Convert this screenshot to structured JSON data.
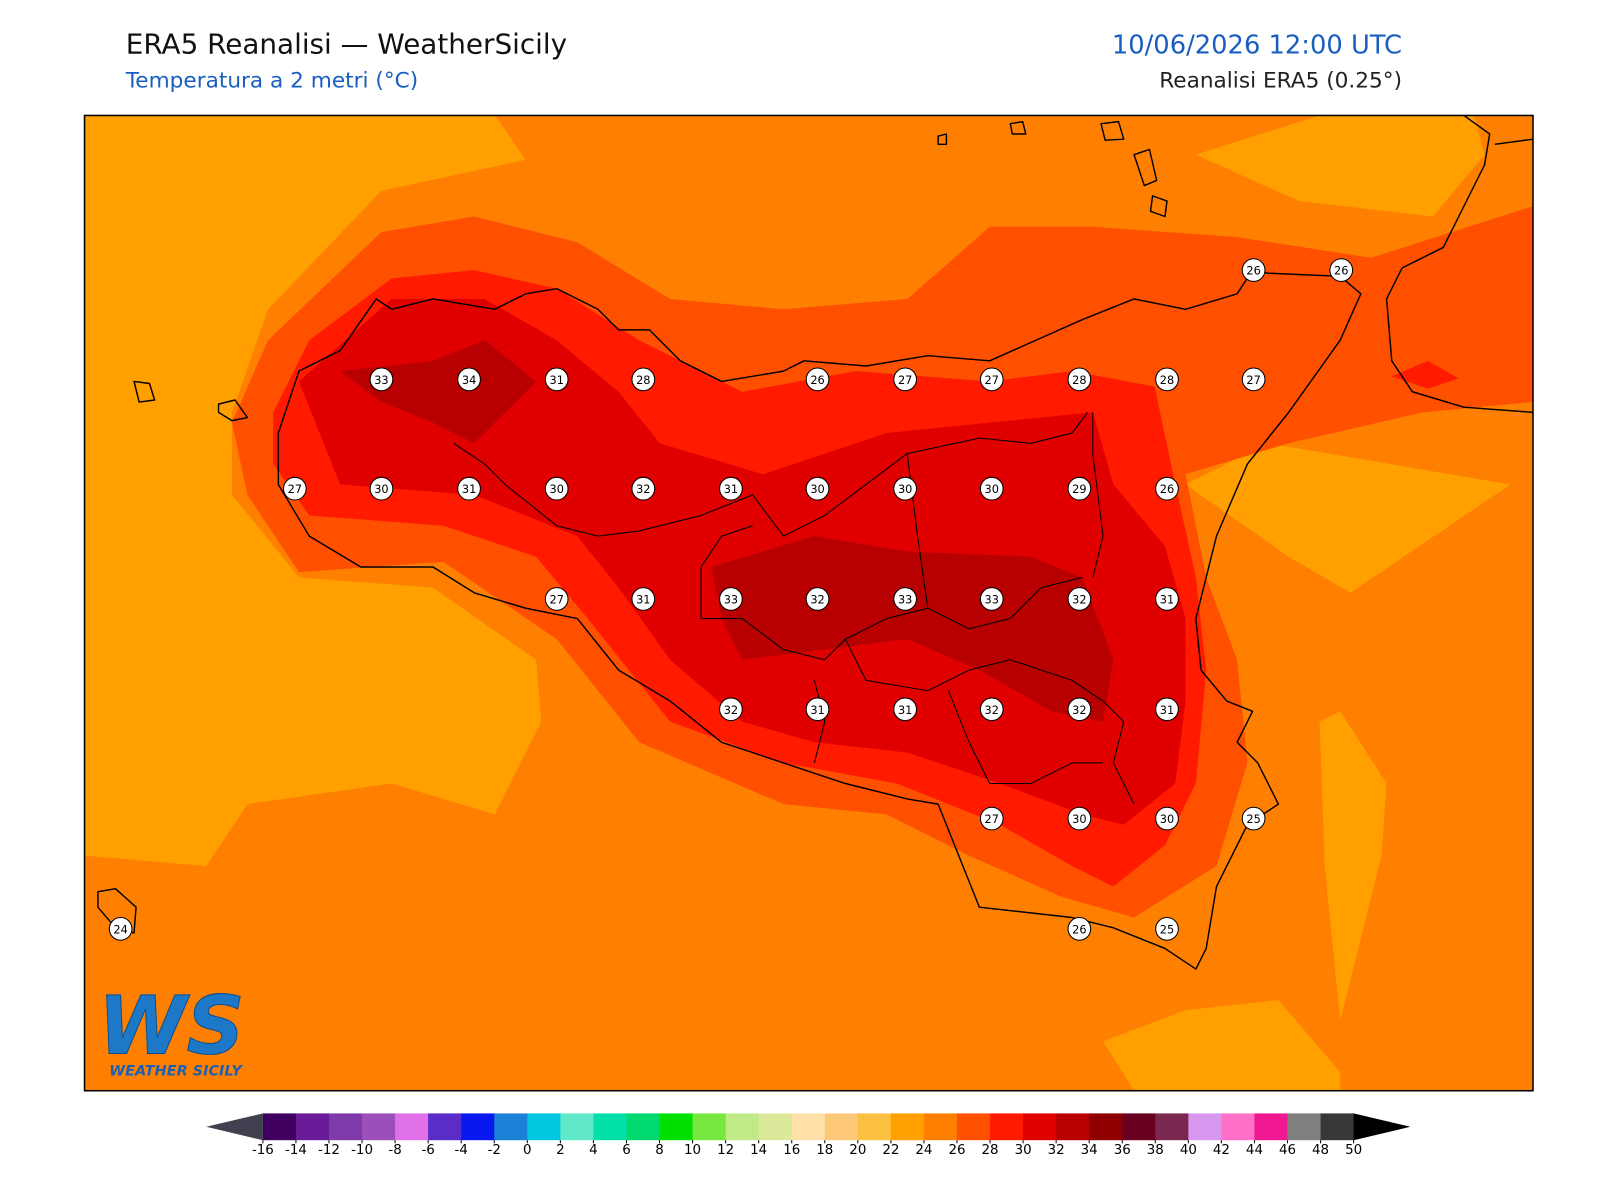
{
  "header": {
    "title": "ERA5 Reanalisi — WeatherSicily",
    "subtitle": "Temperatura a 2 metri (°C)",
    "datetime": "10/06/2026 12:00 UTC",
    "source": "Reanalisi ERA5 (0.25°)"
  },
  "stations": [
    33,
    34,
    31,
    28,
    26,
    27,
    27,
    28,
    28,
    27,
    26,
    26,
    27,
    30,
    31,
    30,
    32,
    31,
    30,
    30,
    30,
    29,
    26,
    27,
    31,
    33,
    32,
    33,
    33,
    32,
    31,
    32,
    31,
    31,
    32,
    32,
    31,
    27,
    30,
    30,
    25,
    24,
    26,
    25
  ],
  "colorbar": {
    "ticks": [
      -16,
      -14,
      -12,
      -10,
      -8,
      -6,
      -4,
      -2,
      0,
      2,
      4,
      6,
      8,
      10,
      12,
      14,
      16,
      18,
      20,
      22,
      24,
      26,
      28,
      30,
      32,
      34,
      36,
      38,
      40,
      42,
      44,
      46,
      48,
      50
    ],
    "colors": [
      "#400060",
      "#6a1b9a",
      "#7e3aa8",
      "#9c4fb8",
      "#e070e8",
      "#5a2cc8",
      "#0a18f0",
      "#1a80d8",
      "#00c8e0",
      "#60e8c8",
      "#00e0a8",
      "#00d870",
      "#00e000",
      "#78e840",
      "#c0ea88",
      "#dce89a",
      "#ffe0a8",
      "#fcc878",
      "#fcc040",
      "#ffa000",
      "#ff8000",
      "#ff5000",
      "#ff1a00",
      "#e00000",
      "#b80000",
      "#900000",
      "#6a0020",
      "#7a2850",
      "#d898f0",
      "#ff70c8",
      "#f01890",
      "#808080",
      "#383838"
    ],
    "under_color": "#404050",
    "over_color": "#000000"
  },
  "logo": {
    "initials": "WS",
    "name": "WEATHER SICILY"
  }
}
